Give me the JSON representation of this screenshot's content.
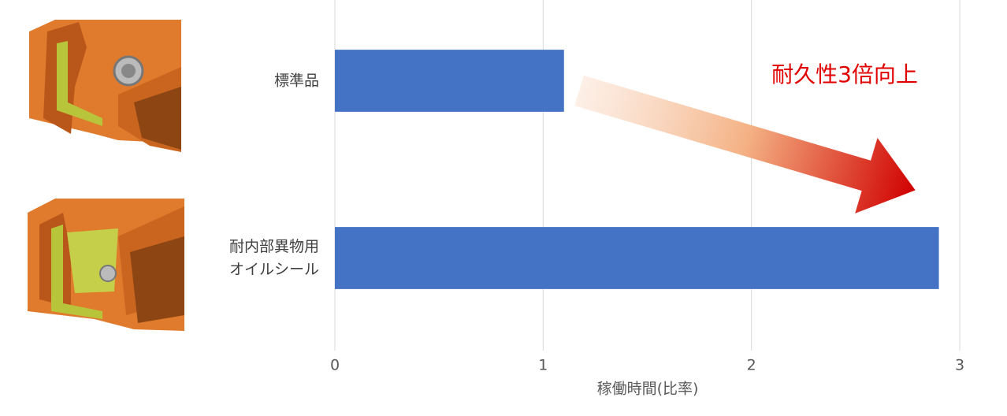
{
  "chart_data": {
    "type": "bar",
    "orientation": "horizontal",
    "categories": [
      "標準品",
      "耐内部異物用\nオイルシール"
    ],
    "values": [
      1.1,
      2.9
    ],
    "color": "#4472c4",
    "xlim": [
      0,
      3
    ],
    "xticks": [
      0,
      1,
      2,
      3
    ],
    "grid": true,
    "xlabel": "稼働時間(比率)",
    "annotation": "耐久性3倍向上"
  }
}
